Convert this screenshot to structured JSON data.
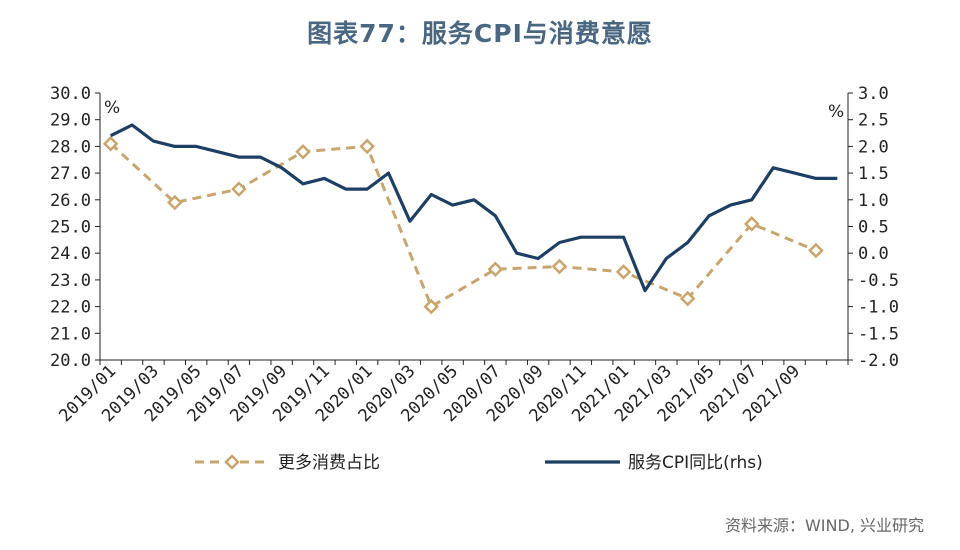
{
  "title": "图表77：服务CPI与消费意愿",
  "source": "资料来源：WIND, 兴业研究",
  "chart_data": {
    "type": "line",
    "title": "图表77：服务CPI与消费意愿",
    "left_axis": {
      "unit": "%",
      "ylim": [
        20.0,
        30.0
      ],
      "ticks": [
        "30.0",
        "29.0",
        "28.0",
        "27.0",
        "26.0",
        "25.0",
        "24.0",
        "23.0",
        "22.0",
        "21.0",
        "20.0"
      ]
    },
    "right_axis": {
      "unit": "%",
      "ylim": [
        -2.0,
        3.0
      ],
      "ticks": [
        "3.0",
        "2.5",
        "2.0",
        "1.5",
        "1.0",
        "0.5",
        "0.0",
        "-0.5",
        "-1.0",
        "-1.5",
        "-2.0"
      ]
    },
    "x": [
      "2019/01",
      "2019/02",
      "2019/03",
      "2019/04",
      "2019/05",
      "2019/06",
      "2019/07",
      "2019/08",
      "2019/09",
      "2019/10",
      "2019/11",
      "2019/12",
      "2020/01",
      "2020/02",
      "2020/03",
      "2020/04",
      "2020/05",
      "2020/06",
      "2020/07",
      "2020/08",
      "2020/09",
      "2020/10",
      "2020/11",
      "2020/12",
      "2021/01",
      "2021/02",
      "2021/03",
      "2021/04",
      "2021/05",
      "2021/06",
      "2021/07",
      "2021/08",
      "2021/09",
      "2021/10",
      "2021/11"
    ],
    "x_tick_labels": [
      "2019/01",
      "2019/03",
      "2019/05",
      "2019/07",
      "2019/09",
      "2019/11",
      "2020/01",
      "2020/03",
      "2020/05",
      "2020/07",
      "2020/09",
      "2020/11",
      "2021/01",
      "2021/03",
      "2021/05",
      "2021/07",
      "2021/09"
    ],
    "series": [
      {
        "name": "更多消费占比",
        "axis": "left",
        "color": "#c8a56e",
        "style": "dashed-diamond",
        "points": [
          {
            "x": "2019/01",
            "y": 28.1
          },
          {
            "x": "2019/04",
            "y": 25.9
          },
          {
            "x": "2019/07",
            "y": 26.4
          },
          {
            "x": "2019/10",
            "y": 27.8
          },
          {
            "x": "2020/01",
            "y": 28.0
          },
          {
            "x": "2020/04",
            "y": 22.0
          },
          {
            "x": "2020/07",
            "y": 23.4
          },
          {
            "x": "2020/10",
            "y": 23.5
          },
          {
            "x": "2021/01",
            "y": 23.3
          },
          {
            "x": "2021/04",
            "y": 22.3
          },
          {
            "x": "2021/07",
            "y": 25.1
          },
          {
            "x": "2021/10",
            "y": 24.1
          }
        ]
      },
      {
        "name": "服务CPI同比(rhs)",
        "axis": "right",
        "color": "#1d3f63",
        "style": "solid",
        "points": [
          {
            "x": "2019/01",
            "y": 2.2
          },
          {
            "x": "2019/02",
            "y": 2.4
          },
          {
            "x": "2019/03",
            "y": 2.1
          },
          {
            "x": "2019/04",
            "y": 2.0
          },
          {
            "x": "2019/05",
            "y": 2.0
          },
          {
            "x": "2019/06",
            "y": 1.9
          },
          {
            "x": "2019/07",
            "y": 1.8
          },
          {
            "x": "2019/08",
            "y": 1.8
          },
          {
            "x": "2019/09",
            "y": 1.6
          },
          {
            "x": "2019/10",
            "y": 1.3
          },
          {
            "x": "2019/11",
            "y": 1.4
          },
          {
            "x": "2019/12",
            "y": 1.2
          },
          {
            "x": "2020/01",
            "y": 1.2
          },
          {
            "x": "2020/02",
            "y": 1.5
          },
          {
            "x": "2020/03",
            "y": 0.6
          },
          {
            "x": "2020/04",
            "y": 1.1
          },
          {
            "x": "2020/05",
            "y": 0.9
          },
          {
            "x": "2020/06",
            "y": 1.0
          },
          {
            "x": "2020/07",
            "y": 0.7
          },
          {
            "x": "2020/08",
            "y": 0.0
          },
          {
            "x": "2020/09",
            "y": -0.1
          },
          {
            "x": "2020/10",
            "y": 0.2
          },
          {
            "x": "2020/11",
            "y": 0.3
          },
          {
            "x": "2020/12",
            "y": 0.3
          },
          {
            "x": "2021/01",
            "y": 0.3
          },
          {
            "x": "2021/02",
            "y": -0.7
          },
          {
            "x": "2021/03",
            "y": -0.1
          },
          {
            "x": "2021/04",
            "y": 0.2
          },
          {
            "x": "2021/05",
            "y": 0.7
          },
          {
            "x": "2021/06",
            "y": 0.9
          },
          {
            "x": "2021/07",
            "y": 1.0
          },
          {
            "x": "2021/08",
            "y": 1.6
          },
          {
            "x": "2021/09",
            "y": 1.5
          },
          {
            "x": "2021/10",
            "y": 1.4
          },
          {
            "x": "2021/11",
            "y": 1.4
          }
        ]
      }
    ],
    "legend": {
      "placement": "bottom",
      "entries": [
        "更多消费占比",
        "服务CPI同比(rhs)"
      ]
    },
    "grid": false
  }
}
